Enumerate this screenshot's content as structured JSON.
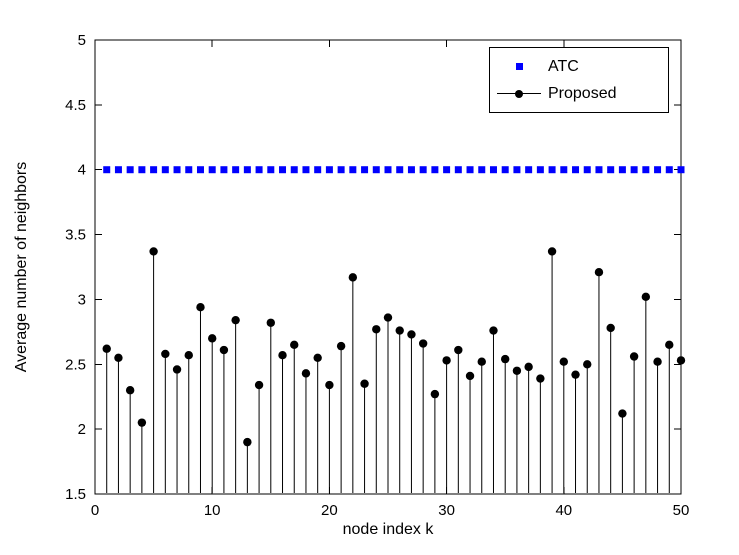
{
  "chart_data": {
    "type": "stem",
    "title": "",
    "xlabel": "node index k",
    "ylabel": "Average number of neighbors",
    "xlim": [
      0,
      50
    ],
    "ylim": [
      1.5,
      5
    ],
    "xticks": [
      0,
      10,
      20,
      30,
      40,
      50
    ],
    "yticks": [
      1.5,
      2,
      2.5,
      3,
      3.5,
      4,
      4.5,
      5
    ],
    "grid": false,
    "x": [
      1,
      2,
      3,
      4,
      5,
      6,
      7,
      8,
      9,
      10,
      11,
      12,
      13,
      14,
      15,
      16,
      17,
      18,
      19,
      20,
      21,
      22,
      23,
      24,
      25,
      26,
      27,
      28,
      29,
      30,
      31,
      32,
      33,
      34,
      35,
      36,
      37,
      38,
      39,
      40,
      41,
      42,
      43,
      44,
      45,
      46,
      47,
      48,
      49,
      50
    ],
    "series": [
      {
        "name": "ATC",
        "type": "constant",
        "style": "dashed-square-markers",
        "y": 4,
        "color": "#0000ff"
      },
      {
        "name": "Proposed",
        "type": "stem",
        "style": "stem-filled-circle",
        "color": "#000000",
        "values": [
          2.62,
          2.55,
          2.3,
          2.05,
          3.37,
          2.58,
          2.46,
          2.57,
          2.94,
          2.7,
          2.61,
          2.84,
          1.9,
          2.34,
          2.82,
          2.57,
          2.65,
          2.43,
          2.55,
          2.34,
          2.64,
          3.17,
          2.35,
          2.77,
          2.86,
          2.76,
          2.73,
          2.66,
          2.27,
          2.53,
          2.61,
          2.41,
          2.52,
          2.76,
          2.54,
          2.45,
          2.48,
          2.39,
          3.37,
          2.52,
          2.42,
          2.5,
          3.21,
          2.78,
          2.12,
          2.56,
          3.02,
          2.52,
          2.65,
          2.53
        ]
      }
    ],
    "legend": {
      "position": "top-right",
      "entries": [
        {
          "label": "ATC"
        },
        {
          "label": "Proposed"
        }
      ]
    }
  }
}
